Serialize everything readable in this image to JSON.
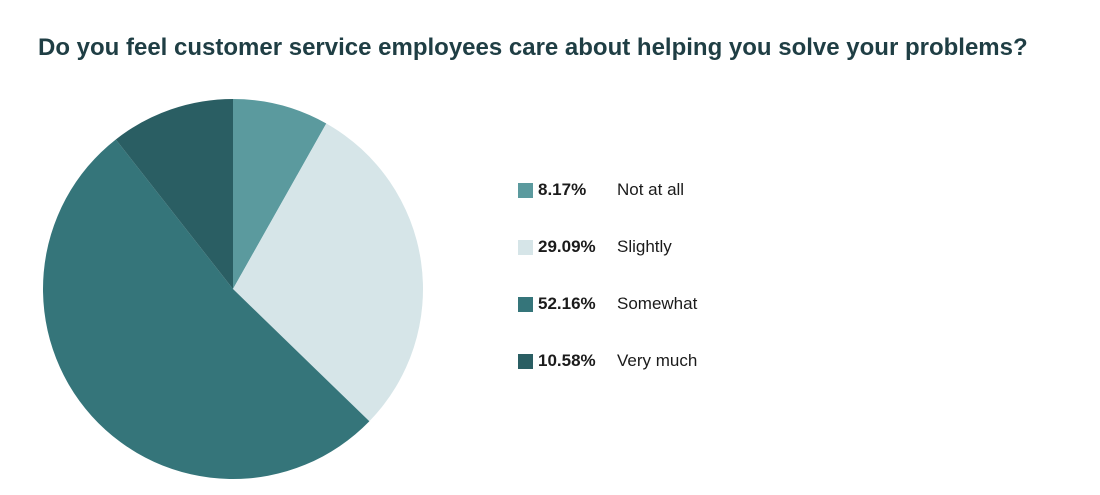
{
  "chart_data": {
    "type": "pie",
    "title": "Do you feel customer service employees care about helping you solve your problems?",
    "slices": [
      {
        "label": "Not at all",
        "value": 8.17,
        "value_label": "8.17%",
        "color": "#5b9a9e"
      },
      {
        "label": "Slightly",
        "value": 29.09,
        "value_label": "29.09%",
        "color": "#d6e5e8"
      },
      {
        "label": "Somewhat",
        "value": 52.16,
        "value_label": "52.16%",
        "color": "#35757a"
      },
      {
        "label": "Very much",
        "value": 10.58,
        "value_label": "10.58%",
        "color": "#2a5e63"
      }
    ],
    "start_angle": "12 o'clock",
    "direction": "clockwise",
    "legend_position": "right"
  }
}
